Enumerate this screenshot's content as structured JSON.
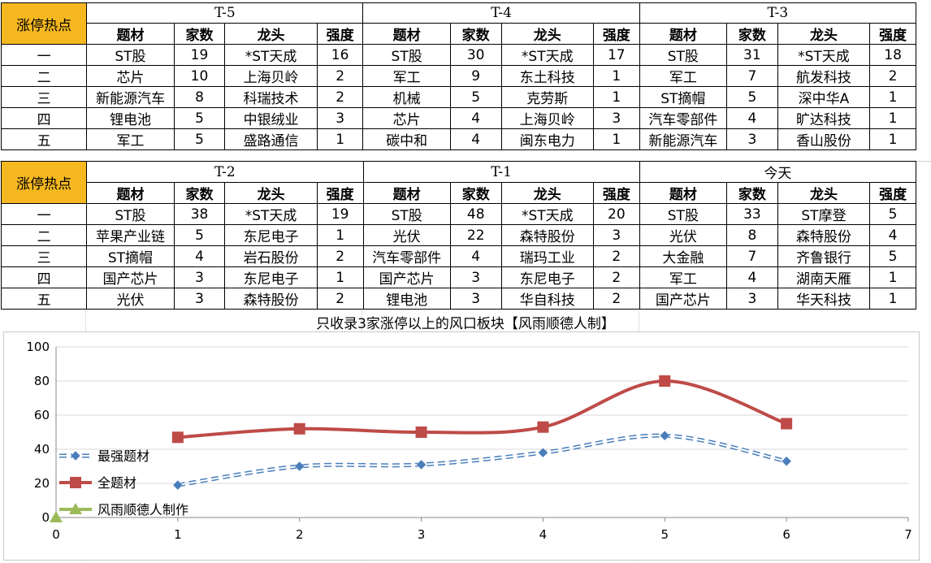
{
  "hot_label": "涨停热点",
  "headers": {
    "theme": "题材",
    "count": "家数",
    "leader": "龙头",
    "strength": "强度"
  },
  "ranks": [
    "一",
    "二",
    "三",
    "四",
    "五"
  ],
  "periods_top": [
    {
      "label": "T-5",
      "rows": [
        [
          "ST股",
          "19",
          "*ST天成",
          "16"
        ],
        [
          "芯片",
          "10",
          "上海贝岭",
          "2"
        ],
        [
          "新能源汽车",
          "8",
          "科瑞技术",
          "2"
        ],
        [
          "锂电池",
          "5",
          "中银绒业",
          "3"
        ],
        [
          "军工",
          "5",
          "盛路通信",
          "1"
        ]
      ]
    },
    {
      "label": "T-4",
      "rows": [
        [
          "ST股",
          "30",
          "*ST天成",
          "17"
        ],
        [
          "军工",
          "9",
          "东土科技",
          "1"
        ],
        [
          "机械",
          "5",
          "克劳斯",
          "1"
        ],
        [
          "芯片",
          "4",
          "上海贝岭",
          "3"
        ],
        [
          "碳中和",
          "4",
          "闽东电力",
          "1"
        ]
      ]
    },
    {
      "label": "T-3",
      "rows": [
        [
          "ST股",
          "31",
          "*ST天成",
          "18"
        ],
        [
          "军工",
          "7",
          "航发科技",
          "2"
        ],
        [
          "ST摘帽",
          "5",
          "深中华A",
          "1"
        ],
        [
          "汽车零部件",
          "4",
          "旷达科技",
          "1"
        ],
        [
          "新能源汽车",
          "3",
          "香山股份",
          "1"
        ]
      ]
    }
  ],
  "periods_bottom": [
    {
      "label": "T-2",
      "rows": [
        [
          "ST股",
          "38",
          "*ST天成",
          "19"
        ],
        [
          "苹果产业链",
          "5",
          "东尼电子",
          "1"
        ],
        [
          "ST摘帽",
          "4",
          "岩石股份",
          "2"
        ],
        [
          "国产芯片",
          "3",
          "东尼电子",
          "1"
        ],
        [
          "光伏",
          "3",
          "森特股份",
          "2"
        ]
      ]
    },
    {
      "label": "T-1",
      "rows": [
        [
          "ST股",
          "48",
          "*ST天成",
          "20"
        ],
        [
          "光伏",
          "22",
          "森特股份",
          "3"
        ],
        [
          "汽车零部件",
          "4",
          "瑞玛工业",
          "2"
        ],
        [
          "国产芯片",
          "3",
          "东尼电子",
          "2"
        ],
        [
          "锂电池",
          "3",
          "华自科技",
          "2"
        ]
      ]
    },
    {
      "label": "今天",
      "rows": [
        [
          "ST股",
          "33",
          "ST摩登",
          "5"
        ],
        [
          "光伏",
          "8",
          "森特股份",
          "4"
        ],
        [
          "大金融",
          "7",
          "齐鲁银行",
          "5"
        ],
        [
          "军工",
          "4",
          "湖南天雁",
          "1"
        ],
        [
          "国产芯片",
          "3",
          "华天科技",
          "1"
        ]
      ]
    }
  ],
  "colors": {
    "header_bg": "#f5b820",
    "header_red": "#e00000",
    "leader_blue": "#1aa6d9",
    "series_strong": "#4a7ebb",
    "series_all": "#be4b48",
    "series_author": "#9bbb59"
  },
  "chart_data": {
    "type": "line",
    "title": "只收录3家涨停以上的风口板块【风雨顺德人制】",
    "xlabel": "",
    "ylabel": "",
    "xlim": [
      0,
      7
    ],
    "ylim": [
      0,
      100
    ],
    "x_ticks": [
      "0",
      "1",
      "2",
      "3",
      "4",
      "5",
      "6",
      "7"
    ],
    "y_ticks": [
      "0",
      "20",
      "40",
      "60",
      "80",
      "100"
    ],
    "grid": "horizontal",
    "legend_position": "left",
    "series": [
      {
        "name": "最强题材",
        "style": "dashed",
        "marker": "diamond",
        "color": "#4a7ebb",
        "x": [
          1,
          2,
          3,
          4,
          5,
          6
        ],
        "values": [
          19,
          30,
          31,
          38,
          48,
          33
        ]
      },
      {
        "name": "全题材",
        "style": "solid",
        "marker": "square",
        "color": "#be4b48",
        "x": [
          1,
          2,
          3,
          4,
          5,
          6
        ],
        "values": [
          47,
          52,
          50,
          53,
          80,
          55
        ]
      },
      {
        "name": "风雨顺德人制作",
        "style": "solid",
        "marker": "triangle",
        "color": "#9bbb59",
        "x": [
          0
        ],
        "values": [
          0
        ]
      }
    ]
  }
}
